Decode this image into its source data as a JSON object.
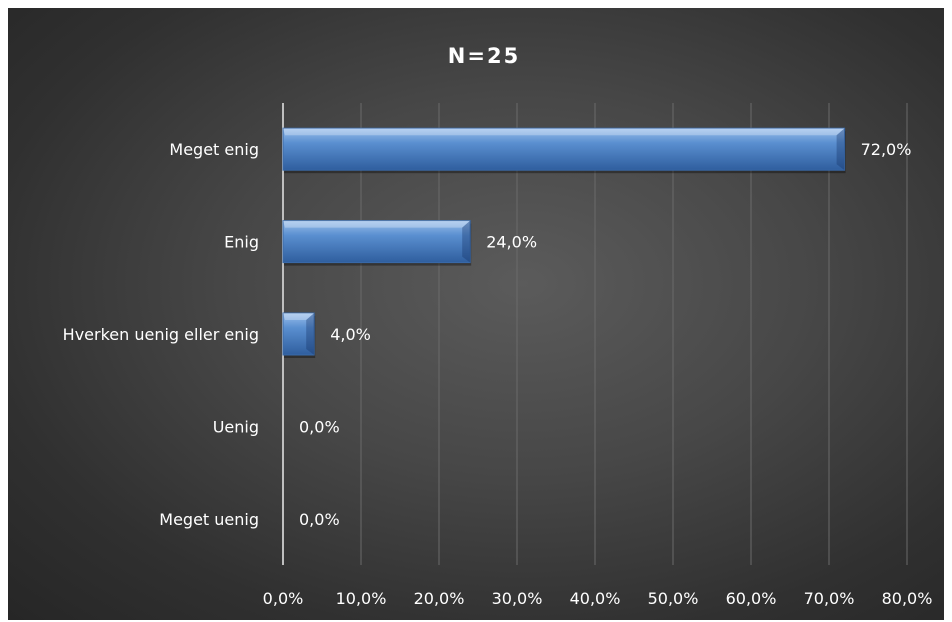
{
  "chart_data": {
    "type": "bar",
    "orientation": "horizontal",
    "title": "N=25",
    "categories": [
      "Meget enig",
      "Enig",
      "Hverken uenig eller enig",
      "Uenig",
      "Meget uenig"
    ],
    "values": [
      72.0,
      24.0,
      4.0,
      0.0,
      0.0
    ],
    "value_labels": [
      "72,0%",
      "24,0%",
      "4,0%",
      "0,0%",
      "0,0%"
    ],
    "x_ticks": [
      0,
      10,
      20,
      30,
      40,
      50,
      60,
      70,
      80
    ],
    "x_tick_labels": [
      "0,0%",
      "10,0%",
      "20,0%",
      "30,0%",
      "40,0%",
      "50,0%",
      "60,0%",
      "70,0%",
      "80,0%"
    ],
    "xlim": [
      0,
      80
    ],
    "xlabel": "",
    "ylabel": "",
    "grid": "vertical",
    "legend": "none",
    "colors": {
      "bar": "#4f81bd",
      "bar_light": "#8fb4e3",
      "bar_dark": "#2f5a94",
      "grid": "#6a6a6a",
      "axis": "#bfbfbf",
      "text": "#ffffff"
    }
  }
}
